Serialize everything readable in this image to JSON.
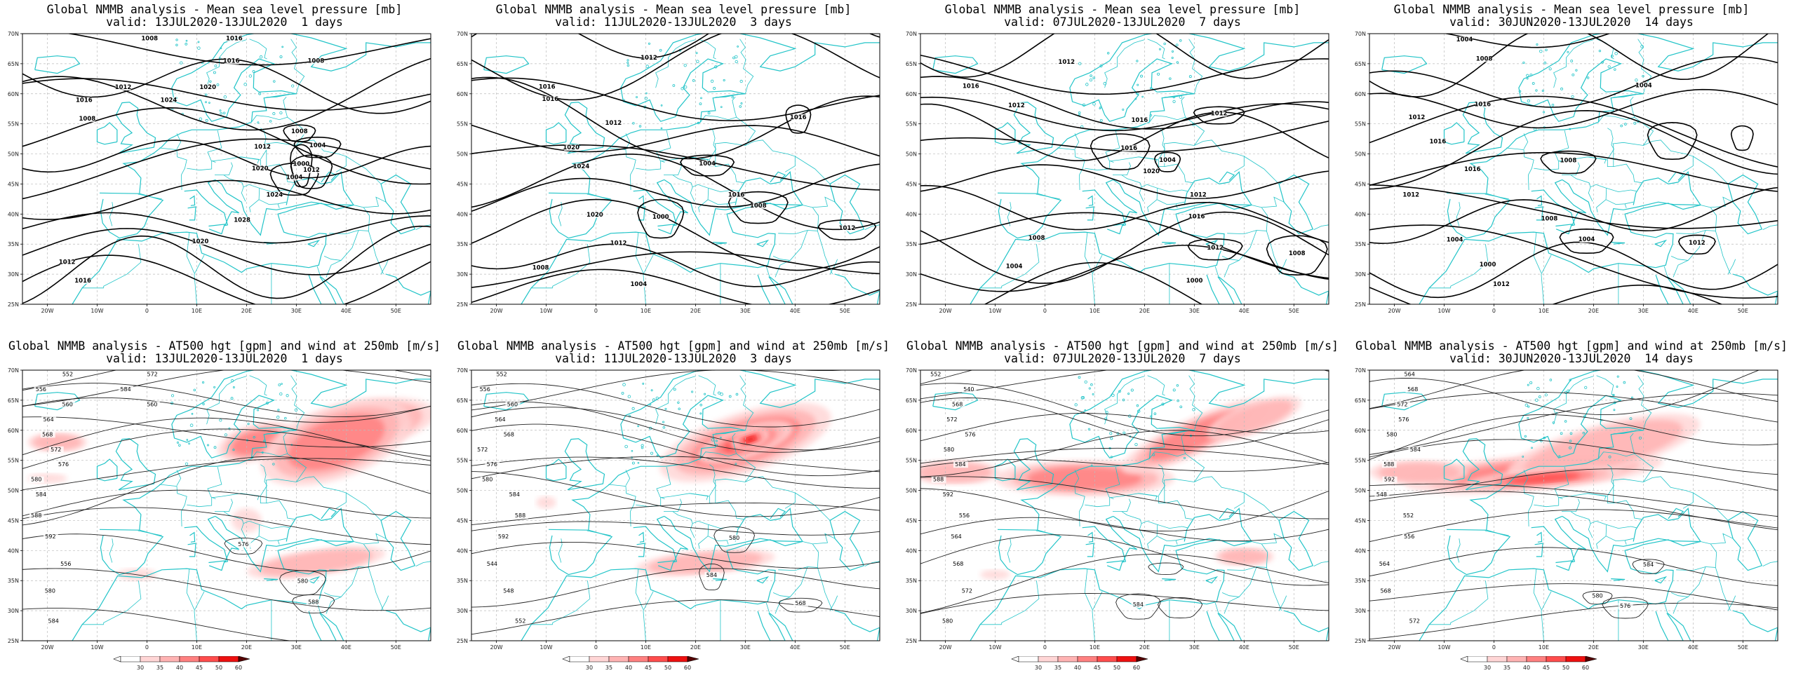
{
  "colors": {
    "coast": "#22c4c8",
    "contour": "#000000",
    "grid": "#bbbbbb",
    "wind_levels": [
      "#ffd6d6",
      "#ffb3b3",
      "#ff8080",
      "#ff4d4d",
      "#ee1010",
      "#aa0000"
    ]
  },
  "axes": {
    "lon_labels": [
      "20W",
      "10W",
      "0",
      "10E",
      "20E",
      "30E",
      "40E",
      "50E"
    ],
    "lat_labels": [
      "70N",
      "65N",
      "60N",
      "55N",
      "50N",
      "45N",
      "40N",
      "35N",
      "30N",
      "25N"
    ]
  },
  "colorbar": {
    "labels": [
      "30",
      "35",
      "40",
      "45",
      "50",
      "60"
    ]
  },
  "panels": [
    {
      "title": "Global NMMB analysis - Mean sea level pressure [mb]",
      "subtitle": "valid: 13JUL2020-13JUL2020  1 days",
      "kind": "mslp",
      "contour_labels": [
        "1008",
        "1016",
        "1012",
        "1016",
        "1008",
        "1012",
        "1020",
        "1024",
        "1028",
        "1020",
        "1012",
        "1016",
        "1012",
        "1008",
        "1004",
        "1000",
        "1004",
        "1016",
        "1008",
        "1020",
        "1024"
      ]
    },
    {
      "title": "Global NMMB analysis - Mean sea level pressure [mb]",
      "subtitle": "valid: 11JUL2020-13JUL2020  3 days",
      "kind": "mslp",
      "contour_labels": [
        "1008",
        "1012",
        "1016",
        "1016",
        "1012",
        "1020",
        "1024",
        "1016",
        "1020",
        "1012",
        "1008",
        "1004",
        "1000",
        "1016",
        "1012",
        "1008",
        "1004",
        "1012"
      ]
    },
    {
      "title": "Global NMMB analysis - Mean sea level pressure [mb]",
      "subtitle": "valid: 07JUL2020-13JUL2020  7 days",
      "kind": "mslp",
      "contour_labels": [
        "1008",
        "1012",
        "1016",
        "1012",
        "1016",
        "1016",
        "1020",
        "1012",
        "1016",
        "1008",
        "1004",
        "1000",
        "1012",
        "1008",
        "1004",
        "1012"
      ]
    },
    {
      "title": "Global NMMB analysis - Mean sea level pressure [mb]",
      "subtitle": "valid: 30JUN2020-13JUL2020  14 days",
      "kind": "mslp",
      "contour_labels": [
        "1004",
        "1008",
        "1004",
        "1016",
        "1012",
        "1016",
        "1016",
        "1012",
        "1008",
        "1004",
        "1000",
        "1012",
        "1008",
        "1004",
        "1012"
      ]
    },
    {
      "title": "Global NMMB analysis - AT500 hgt [gpm] and wind at 250mb [m/s]",
      "subtitle": "valid: 13JUL2020-13JUL2020  1 days",
      "kind": "z500",
      "contour_labels": [
        "552",
        "556",
        "560",
        "564",
        "568",
        "572",
        "576",
        "580",
        "584",
        "588",
        "592",
        "556",
        "580",
        "584",
        "588",
        "580",
        "576",
        "572",
        "584",
        "560"
      ]
    },
    {
      "title": "Global NMMB analysis - AT500 hgt [gpm] and wind at 250mb [m/s]",
      "subtitle": "valid: 11JUL2020-13JUL2020  3 days",
      "kind": "z500",
      "contour_labels": [
        "552",
        "556",
        "560",
        "564",
        "568",
        "572",
        "576",
        "580",
        "584",
        "588",
        "592",
        "544",
        "548",
        "552",
        "568",
        "580",
        "584"
      ]
    },
    {
      "title": "Global NMMB analysis - AT500 hgt [gpm] and wind at 250mb [m/s]",
      "subtitle": "valid: 07JUL2020-13JUL2020  7 days",
      "kind": "z500",
      "contour_labels": [
        "552",
        "540",
        "568",
        "572",
        "576",
        "580",
        "584",
        "588",
        "592",
        "556",
        "564",
        "568",
        "572",
        "580",
        "584"
      ]
    },
    {
      "title": "Global NMMB analysis - AT500 hgt [gpm] and wind at 250mb [m/s]",
      "subtitle": "valid: 30JUN2020-13JUL2020  14 days",
      "kind": "z500",
      "contour_labels": [
        "564",
        "568",
        "572",
        "576",
        "580",
        "584",
        "588",
        "592",
        "548",
        "552",
        "556",
        "564",
        "568",
        "572",
        "576",
        "580",
        "584"
      ]
    }
  ]
}
